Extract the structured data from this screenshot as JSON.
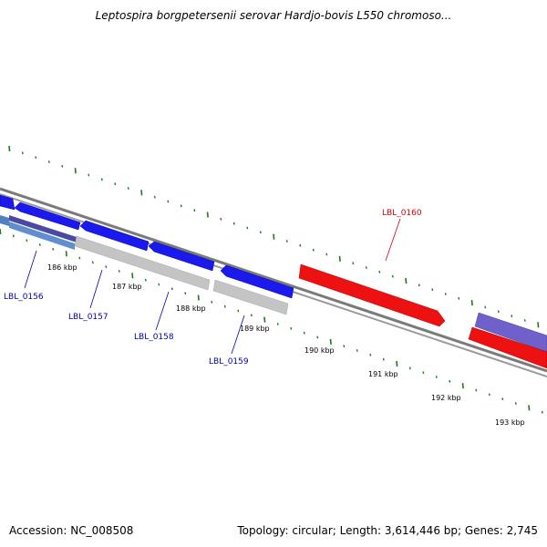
{
  "title": "Leptospira borgpetersenii serovar Hardjo-bovis L550 chromoso...",
  "footer": {
    "accession": "Accession: NC_008508",
    "summary": "Topology: circular; Length: 3,614,446 bp; Genes: 2,745"
  },
  "colors": {
    "backbone": "#888888",
    "tick": "#1e7a1e",
    "gene_blue": "#1a1aee",
    "gene_red": "#ee1111",
    "gene_grey": "#bfbfbf",
    "gene_steel": "#4f7fbf",
    "gene_purple": "#7060cc",
    "label_blue": "#0000aa",
    "label_red": "#cc0000"
  },
  "ticks": [
    "186 kbp",
    "187 kbp",
    "188 kbp",
    "189 kbp",
    "190 kbp",
    "191 kbp",
    "192 kbp",
    "193 kbp"
  ],
  "genes": [
    {
      "label": "LBL_0156",
      "color": "blue"
    },
    {
      "label": "LBL_0157",
      "color": "blue"
    },
    {
      "label": "LBL_0158",
      "color": "blue"
    },
    {
      "label": "LBL_0159",
      "color": "blue"
    },
    {
      "label": "LBL_0160",
      "color": "red"
    }
  ]
}
